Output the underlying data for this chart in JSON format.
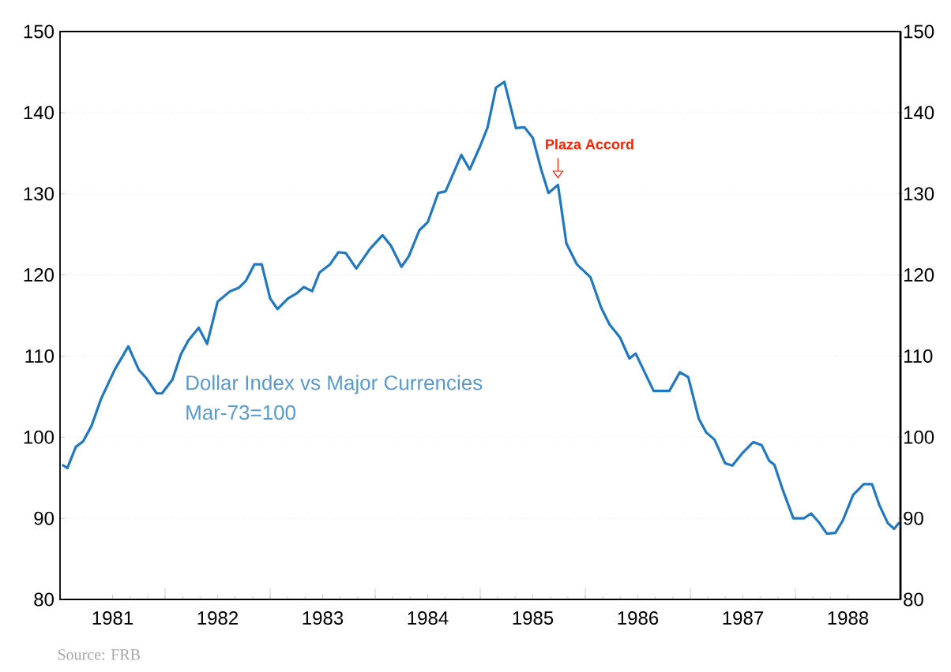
{
  "chart_data": {
    "type": "line",
    "x": [
      1981.02,
      1981.07,
      1981.15,
      1981.22,
      1981.3,
      1981.39,
      1981.52,
      1981.65,
      1981.75,
      1981.82,
      1981.92,
      1981.97,
      1982.07,
      1982.15,
      1982.22,
      1982.32,
      1982.4,
      1982.5,
      1982.62,
      1982.7,
      1982.77,
      1982.85,
      1982.92,
      1983.0,
      1983.07,
      1983.17,
      1983.25,
      1983.32,
      1983.4,
      1983.47,
      1983.57,
      1983.65,
      1983.72,
      1983.82,
      1983.95,
      1984.07,
      1984.15,
      1984.25,
      1984.32,
      1984.42,
      1984.5,
      1984.6,
      1984.67,
      1984.77,
      1984.82,
      1984.9,
      1985.0,
      1985.07,
      1985.15,
      1985.23,
      1985.34,
      1985.42,
      1985.5,
      1985.58,
      1985.65,
      1985.74,
      1985.82,
      1985.92,
      1986.05,
      1986.15,
      1986.23,
      1986.33,
      1986.42,
      1986.48,
      1986.65,
      1986.8,
      1986.9,
      1986.98,
      1987.08,
      1987.15,
      1987.23,
      1987.33,
      1987.4,
      1987.5,
      1987.6,
      1987.68,
      1987.75,
      1987.8,
      1987.88,
      1987.98,
      1988.08,
      1988.15,
      1988.23,
      1988.3,
      1988.38,
      1988.45,
      1988.55,
      1988.65,
      1988.73,
      1988.8,
      1988.88,
      1988.94,
      1988.99
    ],
    "series": [
      {
        "name": "Dollar Index vs Major Currencies",
        "color": "#1f78c1",
        "values": [
          96.6,
          96.2,
          98.8,
          99.5,
          101.4,
          104.7,
          108.3,
          111.2,
          108.3,
          107.3,
          105.4,
          105.4,
          107.1,
          110.2,
          111.9,
          113.5,
          111.5,
          116.7,
          118.0,
          118.4,
          119.3,
          121.3,
          121.3,
          117.1,
          115.8,
          117.1,
          117.7,
          118.5,
          118.0,
          120.3,
          121.3,
          122.8,
          122.7,
          120.8,
          123.2,
          124.9,
          123.6,
          121.0,
          122.3,
          125.5,
          126.5,
          130.1,
          130.3,
          133.3,
          134.8,
          133.0,
          135.9,
          138.2,
          143.1,
          143.8,
          138.1,
          138.2,
          136.9,
          133.0,
          130.1,
          131.1,
          123.9,
          121.3,
          119.7,
          116.0,
          113.9,
          112.3,
          109.7,
          110.3,
          105.7,
          105.7,
          108.0,
          107.4,
          102.3,
          100.6,
          99.7,
          96.8,
          96.5,
          98.1,
          99.4,
          99.0,
          97.1,
          96.6,
          93.5,
          90.0,
          90.0,
          90.6,
          89.4,
          88.1,
          88.2,
          89.7,
          92.9,
          94.2,
          94.2,
          91.6,
          89.4,
          88.7,
          89.5
        ]
      }
    ],
    "xlim": [
      1981,
      1989
    ],
    "xticks": [
      {
        "value": 1981.5,
        "label": "1981"
      },
      {
        "value": 1982,
        "label": null
      },
      {
        "value": 1982.5,
        "label": "1982"
      },
      {
        "value": 1983,
        "label": null
      },
      {
        "value": 1983.5,
        "label": "1983"
      },
      {
        "value": 1984,
        "label": null
      },
      {
        "value": 1984.5,
        "label": "1984"
      },
      {
        "value": 1985,
        "label": null
      },
      {
        "value": 1985.5,
        "label": "1985"
      },
      {
        "value": 1986,
        "label": null
      },
      {
        "value": 1986.5,
        "label": "1986"
      },
      {
        "value": 1987,
        "label": null
      },
      {
        "value": 1987.5,
        "label": "1987"
      },
      {
        "value": 1988,
        "label": null
      },
      {
        "value": 1988.5,
        "label": "1988"
      }
    ],
    "ylim": [
      80,
      150
    ],
    "yticks": [
      80,
      90,
      100,
      110,
      120,
      130,
      140,
      150
    ],
    "y2lim": [
      80,
      150
    ],
    "y2ticks": [
      80,
      90,
      100,
      110,
      120,
      130,
      140,
      150
    ],
    "grid": "y",
    "legend": false,
    "annotations": [
      "Mar-73=100",
      {
        "text": "Plaza Accord",
        "x": 1985.74,
        "y": 131.1
      },
      "Source: FRB"
    ]
  }
}
